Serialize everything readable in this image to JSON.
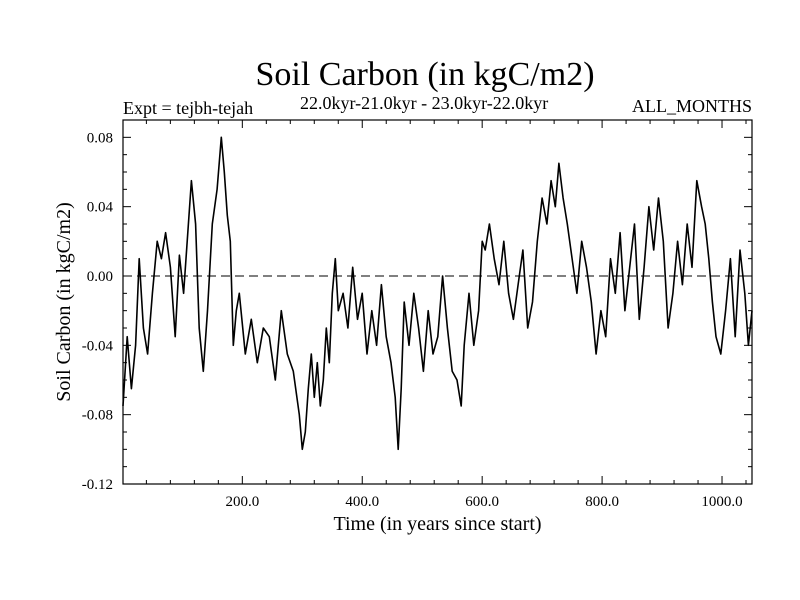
{
  "chart_data": {
    "type": "line",
    "title": "Soil Carbon (in kgC/m2)",
    "subtitle": "22.0kyr-21.0kyr - 23.0kyr-22.0kyr",
    "expt_label": "Expt = tejbh-tejah",
    "months_label": "ALL_MONTHS",
    "xlabel": "Time (in years since start)",
    "ylabel": "Soil Carbon (in kgC/m2)",
    "xlim": [
      1,
      1050
    ],
    "ylim": [
      -0.12,
      0.09
    ],
    "x_ticks": [
      200,
      400,
      600,
      800,
      1000
    ],
    "x_tick_labels": [
      "200.0",
      "400.0",
      "600.0",
      "800.0",
      "1000.0"
    ],
    "y_ticks": [
      -0.12,
      -0.08,
      -0.04,
      0.0,
      0.04,
      0.08
    ],
    "y_tick_labels": [
      "-0.12",
      "-0.08",
      "-0.04",
      "0.00",
      "0.04",
      "0.08"
    ],
    "reference_line": {
      "y": 0.0,
      "style": "dashed"
    },
    "line_color": "#000000",
    "series": [
      {
        "x": [
          1,
          8,
          15,
          22,
          28,
          35,
          42,
          50,
          58,
          65,
          72,
          80,
          88,
          95,
          102,
          108,
          115,
          122,
          128,
          135,
          142,
          150,
          158,
          165,
          170,
          175,
          180,
          185,
          190,
          195,
          205,
          215,
          225,
          235,
          245,
          255,
          265,
          275,
          285,
          295,
          300,
          305,
          310,
          315,
          320,
          325,
          330,
          335,
          340,
          345,
          350,
          355,
          360,
          368,
          376,
          384,
          392,
          400,
          408,
          416,
          424,
          432,
          440,
          448,
          455,
          460,
          465,
          470,
          478,
          486,
          494,
          502,
          510,
          518,
          526,
          534,
          542,
          550,
          558,
          565,
          570,
          578,
          586,
          594,
          600,
          605,
          612,
          620,
          628,
          636,
          644,
          652,
          660,
          668,
          676,
          684,
          692,
          700,
          708,
          715,
          722,
          728,
          735,
          742,
          750,
          758,
          766,
          774,
          782,
          790,
          798,
          806,
          814,
          822,
          830,
          838,
          846,
          854,
          862,
          870,
          878,
          886,
          894,
          902,
          910,
          918,
          926,
          934,
          942,
          950,
          958,
          966,
          972,
          978,
          984,
          990,
          998,
          1006,
          1014,
          1022,
          1030,
          1038,
          1044,
          1050
        ],
        "y": [
          -0.075,
          -0.035,
          -0.065,
          -0.04,
          0.01,
          -0.03,
          -0.045,
          -0.01,
          0.02,
          0.01,
          0.025,
          0.005,
          -0.035,
          0.012,
          -0.01,
          0.02,
          0.055,
          0.03,
          -0.03,
          -0.055,
          -0.02,
          0.03,
          0.05,
          0.08,
          0.06,
          0.035,
          0.02,
          -0.04,
          -0.02,
          -0.01,
          -0.045,
          -0.025,
          -0.05,
          -0.03,
          -0.035,
          -0.06,
          -0.02,
          -0.045,
          -0.055,
          -0.08,
          -0.1,
          -0.09,
          -0.065,
          -0.045,
          -0.07,
          -0.05,
          -0.075,
          -0.06,
          -0.03,
          -0.05,
          -0.01,
          0.01,
          -0.02,
          -0.01,
          -0.03,
          0.005,
          -0.025,
          -0.01,
          -0.045,
          -0.02,
          -0.04,
          -0.005,
          -0.035,
          -0.05,
          -0.07,
          -0.1,
          -0.065,
          -0.015,
          -0.04,
          -0.01,
          -0.03,
          -0.055,
          -0.02,
          -0.045,
          -0.035,
          0.0,
          -0.03,
          -0.055,
          -0.06,
          -0.075,
          -0.04,
          -0.01,
          -0.04,
          -0.02,
          0.02,
          0.015,
          0.03,
          0.01,
          -0.005,
          0.02,
          -0.01,
          -0.025,
          -0.005,
          0.015,
          -0.03,
          -0.015,
          0.02,
          0.045,
          0.03,
          0.055,
          0.04,
          0.065,
          0.045,
          0.03,
          0.01,
          -0.01,
          0.02,
          0.005,
          -0.015,
          -0.045,
          -0.02,
          -0.035,
          0.01,
          -0.01,
          0.025,
          -0.02,
          0.005,
          0.03,
          -0.025,
          0.005,
          0.04,
          0.015,
          0.045,
          0.02,
          -0.03,
          -0.01,
          0.02,
          -0.005,
          0.03,
          0.005,
          0.055,
          0.04,
          0.03,
          0.01,
          -0.015,
          -0.035,
          -0.045,
          -0.02,
          0.01,
          -0.035,
          0.015,
          -0.01,
          -0.04,
          -0.02
        ]
      }
    ]
  }
}
